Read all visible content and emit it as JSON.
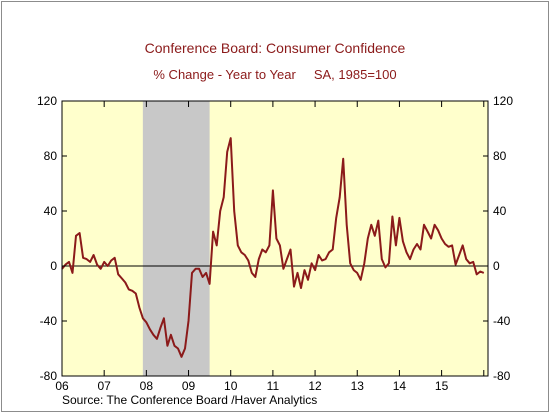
{
  "chart_data": {
    "type": "line",
    "title": "Conference Board: Consumer Confidence",
    "subtitle": "% Change - Year to Year     SA, 1985=100",
    "source": "Source:  The Conference Board /Haver Analytics",
    "ylim": [
      -80,
      120
    ],
    "yticks": [
      -80,
      -40,
      0,
      40,
      80,
      120
    ],
    "xlim": [
      2006.0,
      2016.1
    ],
    "xtick_labels": [
      "06",
      "07",
      "08",
      "09",
      "10",
      "11",
      "12",
      "13",
      "14",
      "15"
    ],
    "xtick_positions": [
      2006,
      2007,
      2008,
      2009,
      2010,
      2011,
      2012,
      2013,
      2014,
      2015
    ],
    "recession": [
      2007.917,
      2009.5
    ],
    "zero_line": true,
    "colors": {
      "line": "#8b1a1a",
      "plot_bg": "#ffffcc",
      "recession": "#c8c8c8"
    },
    "series": [
      {
        "x": [
          2006.0,
          2006.083,
          2006.167,
          2006.25,
          2006.333,
          2006.417,
          2006.5,
          2006.583,
          2006.667,
          2006.75,
          2006.833,
          2006.917,
          2007.0,
          2007.083,
          2007.167,
          2007.25,
          2007.333,
          2007.417,
          2007.5,
          2007.583,
          2007.667,
          2007.75,
          2007.833,
          2007.917,
          2008.0,
          2008.083,
          2008.167,
          2008.25,
          2008.333,
          2008.417,
          2008.5,
          2008.583,
          2008.667,
          2008.75,
          2008.833,
          2008.917,
          2009.0,
          2009.083,
          2009.167,
          2009.25,
          2009.333,
          2009.417,
          2009.5,
          2009.583,
          2009.667,
          2009.75,
          2009.833,
          2009.917,
          2010.0,
          2010.083,
          2010.167,
          2010.25,
          2010.333,
          2010.417,
          2010.5,
          2010.583,
          2010.667,
          2010.75,
          2010.833,
          2010.917,
          2011.0,
          2011.083,
          2011.167,
          2011.25,
          2011.333,
          2011.417,
          2011.5,
          2011.583,
          2011.667,
          2011.75,
          2011.833,
          2011.917,
          2012.0,
          2012.083,
          2012.167,
          2012.25,
          2012.333,
          2012.417,
          2012.5,
          2012.583,
          2012.667,
          2012.75,
          2012.833,
          2012.917,
          2013.0,
          2013.083,
          2013.167,
          2013.25,
          2013.333,
          2013.417,
          2013.5,
          2013.583,
          2013.667,
          2013.75,
          2013.833,
          2013.917,
          2014.0,
          2014.083,
          2014.167,
          2014.25,
          2014.333,
          2014.417,
          2014.5,
          2014.583,
          2014.667,
          2014.75,
          2014.833,
          2014.917,
          2015.0,
          2015.083,
          2015.167,
          2015.25,
          2015.333,
          2015.417,
          2015.5,
          2015.583,
          2015.667,
          2015.75,
          2015.833,
          2015.917,
          2016.0
        ],
        "values": [
          -2,
          1,
          3,
          -5,
          22,
          24,
          6,
          5,
          3,
          8,
          1,
          -2,
          3,
          0,
          4,
          6,
          -6,
          -9,
          -12,
          -17,
          -18,
          -20,
          -30,
          -38,
          -41,
          -46,
          -50,
          -53,
          -45,
          -38,
          -58,
          -50,
          -58,
          -60,
          -66,
          -60,
          -40,
          -5,
          -2,
          -2,
          -8,
          -5,
          -13,
          25,
          15,
          40,
          50,
          83,
          93,
          40,
          15,
          10,
          8,
          4,
          -5,
          -8,
          5,
          12,
          10,
          15,
          55,
          20,
          15,
          -2,
          5,
          12,
          -15,
          -5,
          -16,
          -3,
          -10,
          2,
          -3,
          8,
          4,
          5,
          10,
          12,
          35,
          50,
          78,
          30,
          2,
          -3,
          -5,
          -10,
          2,
          20,
          30,
          22,
          33,
          5,
          -1,
          2,
          36,
          15,
          35,
          18,
          10,
          5,
          12,
          16,
          12,
          30,
          25,
          20,
          30,
          26,
          20,
          16,
          14,
          15,
          1,
          8,
          15,
          5,
          2,
          3,
          -6,
          -4,
          -5
        ]
      }
    ]
  }
}
